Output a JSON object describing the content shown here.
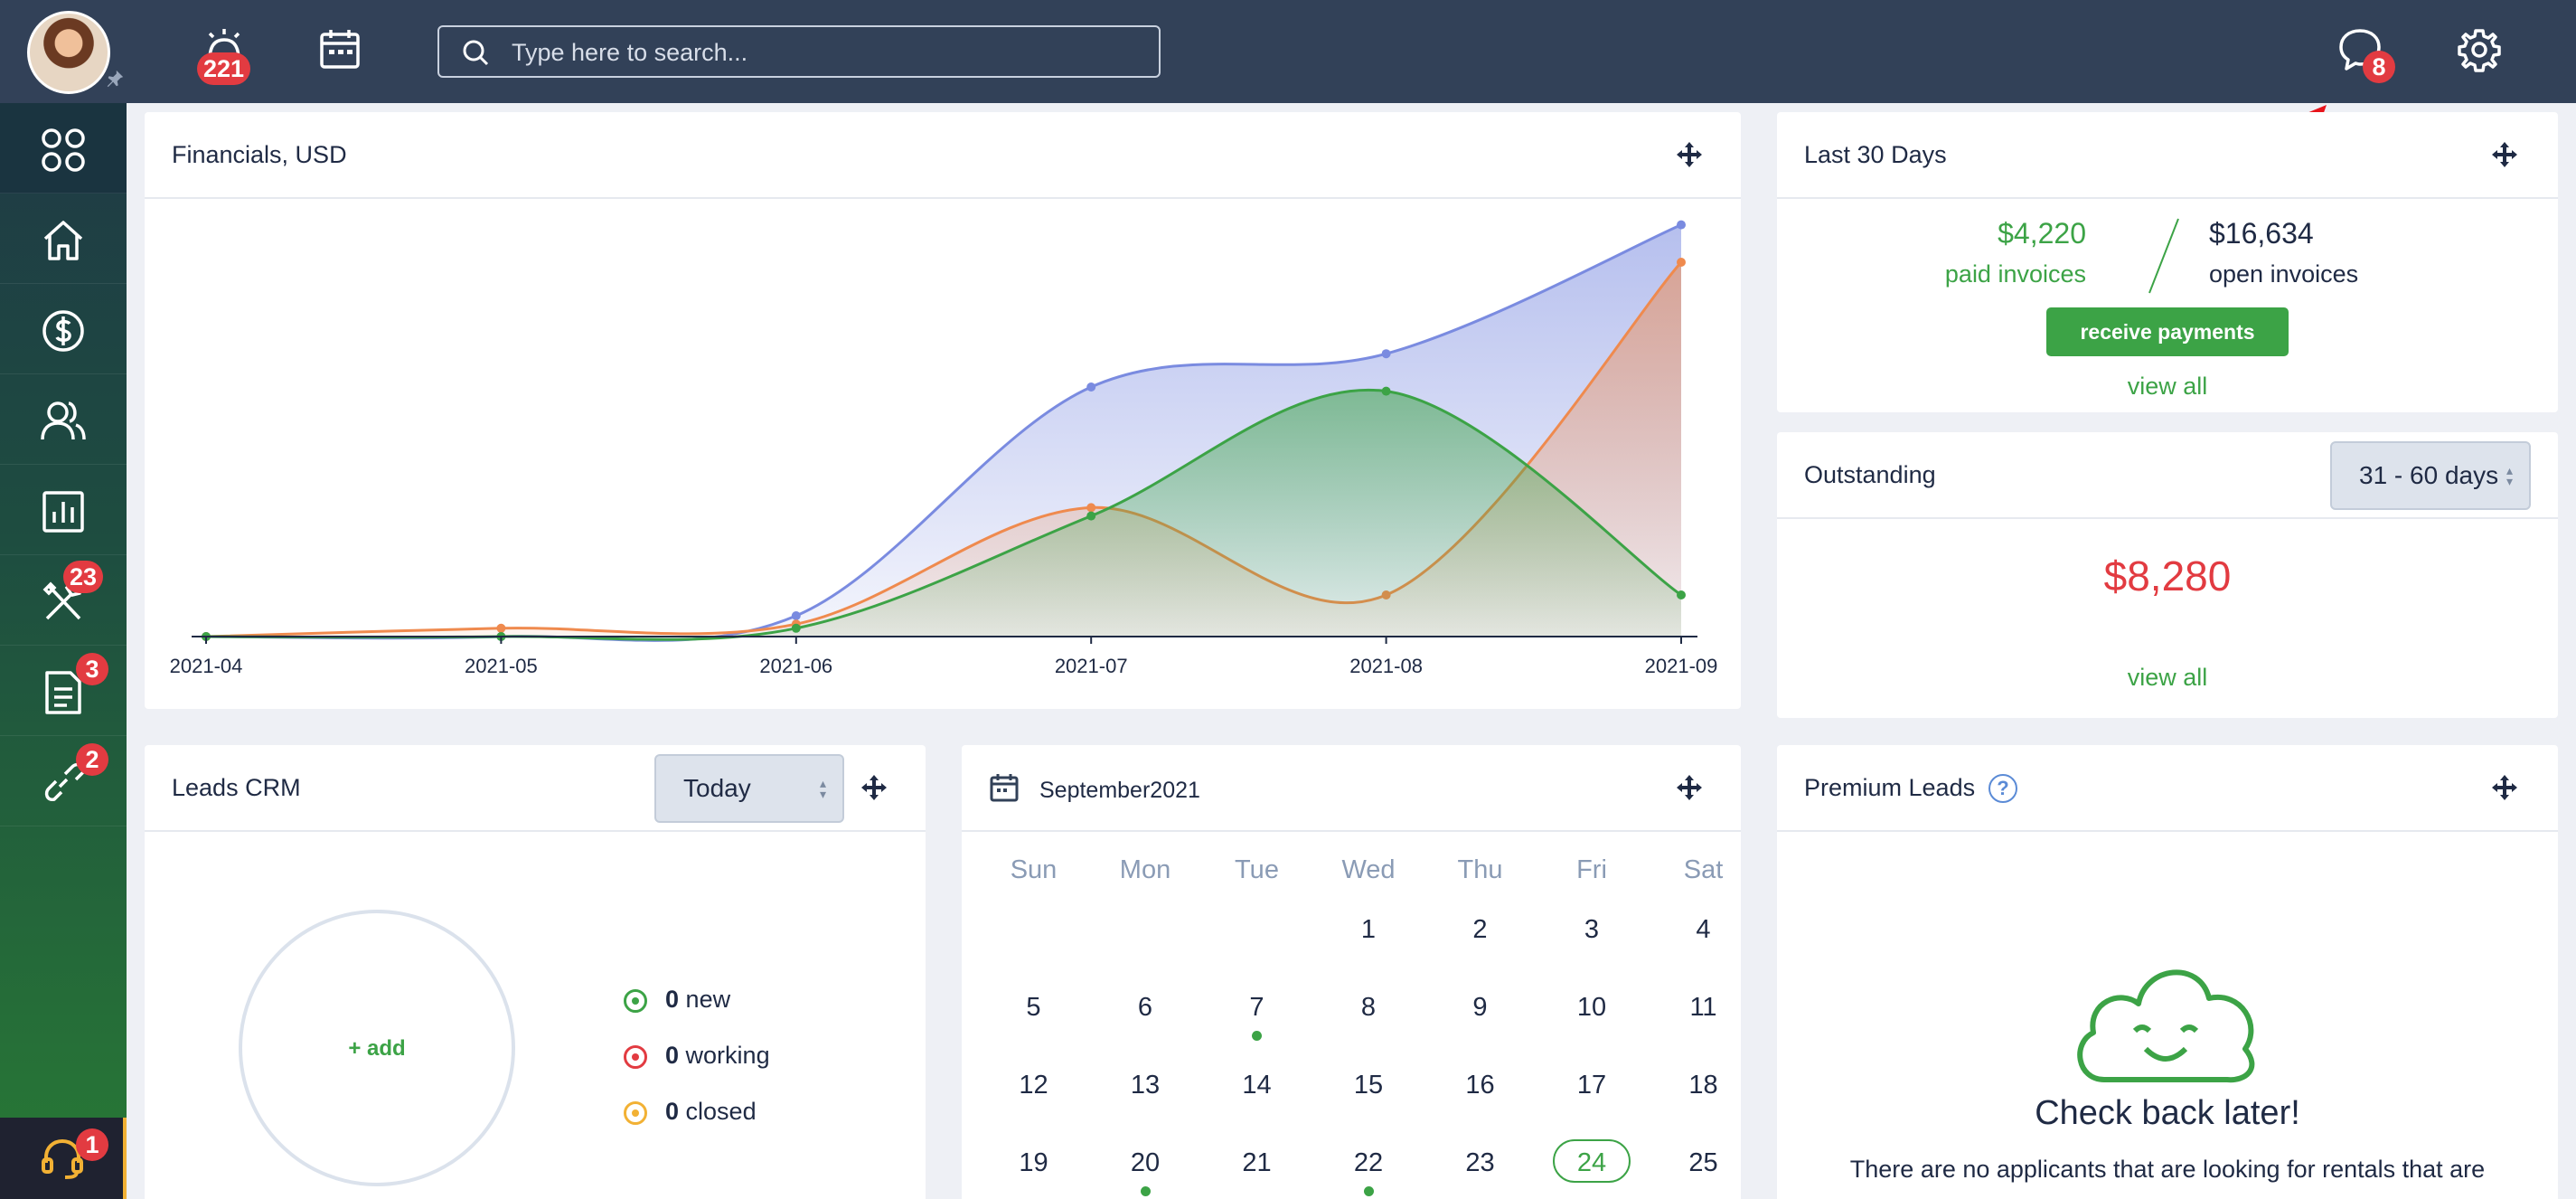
{
  "topbar": {
    "alerts_badge": "221",
    "search_placeholder": "Type here to search...",
    "messages_badge": "8"
  },
  "sidebar": {
    "tools_badge": "23",
    "documents_badge": "3",
    "links_badge": "2",
    "support_badge": "1"
  },
  "financials": {
    "title": "Financials, USD",
    "chart_data": {
      "type": "area",
      "categories": [
        "2021-04",
        "2021-05",
        "2021-06",
        "2021-07",
        "2021-08",
        "2021-09"
      ],
      "series": [
        {
          "color": "#7a8be0",
          "values": [
            0,
            0,
            5,
            60,
            68,
            99
          ]
        },
        {
          "color": "#ef8a4e",
          "values": [
            0,
            2,
            3,
            31,
            10,
            90
          ]
        },
        {
          "color": "#3ca346",
          "values": [
            0,
            0,
            2,
            29,
            59,
            10
          ]
        }
      ],
      "ylim": [
        0,
        100
      ],
      "grid": false
    }
  },
  "last30": {
    "title": "Last 30 Days",
    "paid_amount": "$4,220",
    "paid_label": "paid invoices",
    "open_amount": "$16,634",
    "open_label": "open invoices",
    "receive_button": "receive payments",
    "view_all": "view all"
  },
  "outstanding": {
    "title": "Outstanding",
    "range": "31 - 60 days",
    "amount": "$8,280",
    "view_all": "view all"
  },
  "leads": {
    "title": "Leads CRM",
    "period": "Today",
    "add_label": "+ add",
    "rows": [
      {
        "count": "0",
        "label": "new",
        "color": "#3ca346"
      },
      {
        "count": "0",
        "label": "working",
        "color": "#e23b41"
      },
      {
        "count": "0",
        "label": "closed",
        "color": "#f2b134"
      }
    ]
  },
  "calendar": {
    "title": "September2021",
    "weekdays": [
      "Sun",
      "Mon",
      "Tue",
      "Wed",
      "Thu",
      "Fri",
      "Sat"
    ],
    "weeks": [
      [
        "",
        "",
        "",
        "1",
        "2",
        "3",
        "4"
      ],
      [
        "5",
        "6",
        "7",
        "8",
        "9",
        "10",
        "11"
      ],
      [
        "12",
        "13",
        "14",
        "15",
        "16",
        "17",
        "18"
      ],
      [
        "19",
        "20",
        "21",
        "22",
        "23",
        "24",
        "25"
      ]
    ],
    "today": "24",
    "event_days": [
      "7",
      "20",
      "22"
    ]
  },
  "premium": {
    "title": "Premium Leads",
    "headline": "Check back later!",
    "message": "There are no applicants that are looking for rentals that are"
  },
  "colors": {
    "topbar": "#324158",
    "accent_green": "#3ca346",
    "badge_red": "#e23b41",
    "outstanding_red": "#e23b41"
  }
}
